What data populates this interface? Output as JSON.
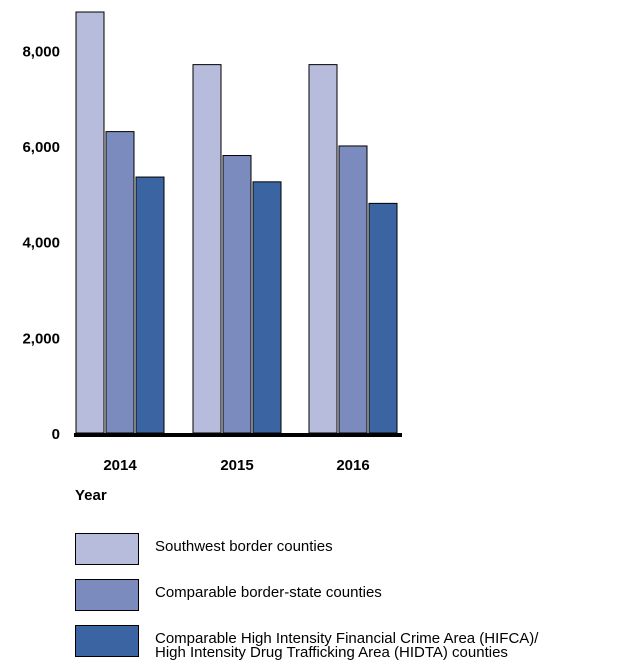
{
  "chart_data": {
    "type": "bar",
    "categories": [
      "2014",
      "2015",
      "2016"
    ],
    "series": [
      {
        "name": "Southwest border counties",
        "color": "#b8bcdc",
        "values": [
          8800,
          7700,
          7700
        ]
      },
      {
        "name": "Comparable border-state counties",
        "color": "#7b8bbd",
        "values": [
          6300,
          5800,
          6000
        ]
      },
      {
        "name": "Comparable High Intensity Financial Crime Area (HIFCA)/\nHigh Intensity Drug Trafficking Area (HIDTA) counties",
        "color": "#3b64a3",
        "values": [
          5350,
          5250,
          4800
        ]
      }
    ],
    "yticks": [
      "0",
      "2,000",
      "4,000",
      "6,000",
      "8,000"
    ],
    "ytick_values": [
      0,
      2000,
      4000,
      6000,
      8000
    ],
    "xlabel": "Year",
    "ylabel": "",
    "ylim": [
      0,
      8800
    ],
    "grid": false,
    "legend_position": "bottom"
  }
}
